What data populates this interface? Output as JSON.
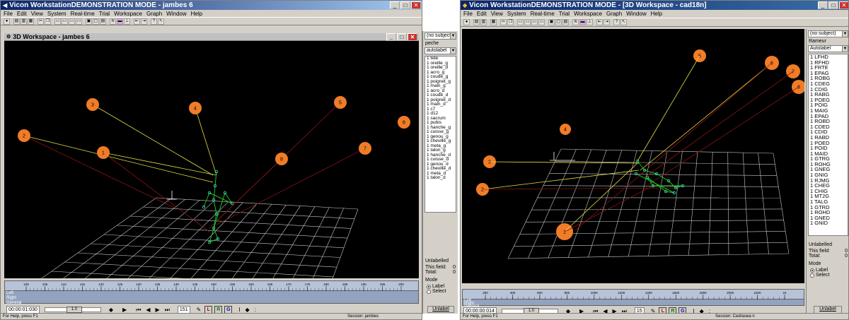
{
  "left": {
    "window_title": "Vicon WorkstationDEMONSTRATION MODE - jambes 6",
    "menu": [
      "File",
      "Edit",
      "View",
      "System",
      "Real-time",
      "Trial",
      "Workspace",
      "Graph",
      "Window",
      "Help"
    ],
    "workspace_title": "3D Workspace - jambes 6",
    "subject_select": "(no subject)",
    "subject_name": "peche",
    "label_mode": "autolabel",
    "markers": [
      "tete",
      "oreille_g",
      "oreille_d",
      "acro_g",
      "coude_g",
      "poignet_g",
      "main_g",
      "acro_d",
      "coude_d",
      "poignet_d",
      "main_d",
      "c7",
      "d12",
      "sacrum",
      "pubis",
      "hanche_g",
      "cuisse_g",
      "genou_g",
      "cheville_g",
      "meta_g",
      "talon_g",
      "hanche_d",
      "cuisse_d",
      "genou_d",
      "cheville_d",
      "meta_d",
      "talon_d"
    ],
    "unlabelled": "Unlabelled",
    "this_field": "This field:",
    "total": "Total:",
    "this_field_value": "0",
    "total_value": "0",
    "mode": "Mode",
    "mode_label": "Label",
    "mode_select": "Select",
    "unlabel_button": "Unlabel",
    "ruler_ticks": [
      "100",
      "105",
      "110",
      "115",
      "120",
      "125",
      "130",
      "135",
      "140",
      "145",
      "150",
      "155",
      "160",
      "165",
      "170",
      "175",
      "180",
      "185",
      "190",
      "195",
      "200"
    ],
    "tracks": [
      "Left",
      "Right",
      "General"
    ],
    "timecode": "00:00:01:030",
    "speed": "1.0",
    "frame": "151",
    "status_help": "For Help, press F1",
    "status_session": "Session: jambes",
    "cameras": [
      "1",
      "2",
      "3",
      "4",
      "5",
      "6",
      "7",
      "8"
    ]
  },
  "right": {
    "window_title": "Vicon WorkstationDEMONSTRATION MODE - [3D Workspace - cad18n]",
    "menu": [
      "File",
      "Edit",
      "View",
      "System",
      "Real-time",
      "Trial",
      "Workspace",
      "Graph",
      "Window",
      "Help"
    ],
    "subject_select": "(no subject)",
    "subject_name": "Rameur",
    "label_mode": "Autolabel",
    "markers": [
      "LFHD",
      "RFHD",
      "FRTE",
      "EPAG",
      "ROBG",
      "CDEG",
      "CDIG",
      "RABG",
      "POEG",
      "POIG",
      "MAIG",
      "EPAD",
      "ROBD",
      "CDED",
      "CDID",
      "RABD",
      "POED",
      "POID",
      "MAID",
      "GTRG",
      "ROHG",
      "GNEG",
      "GNIG",
      "RJMG",
      "CHEG",
      "CHIG",
      "MT2G",
      "TALG",
      "GTRD",
      "ROHD",
      "GNED",
      "GNID"
    ],
    "marker_prefix": "1",
    "unlabelled": "Unlabelled",
    "this_field": "This field:",
    "total": "Total:",
    "this_field_value": "0",
    "total_value": "0",
    "mode": "Mode",
    "mode_label": "Label",
    "mode_select": "Select",
    "unlabel_button": "Unlabel",
    "ruler_ticks": [
      "200",
      "400",
      "600",
      "800",
      "1000",
      "1200",
      "1400",
      "1600",
      "1800",
      "2000",
      "2200",
      "24"
    ],
    "tracks": [
      "Left",
      "Right",
      "General"
    ],
    "timecode": "00:00:00:014",
    "speed": "1.0",
    "frame": "15",
    "status_help": "For Help, press F1",
    "status_session": "Session: Cedrasea n",
    "cameras": [
      "1",
      "2",
      "3",
      "4",
      "5",
      "6",
      "7",
      "8"
    ]
  },
  "colors": {
    "camera_orange": "#f07c28",
    "ray_red": "#8a1414",
    "ray_yellow": "#e8e040",
    "grid": "#c8c8c8",
    "skeleton": "#20c020",
    "marker": "#40e0c0"
  }
}
